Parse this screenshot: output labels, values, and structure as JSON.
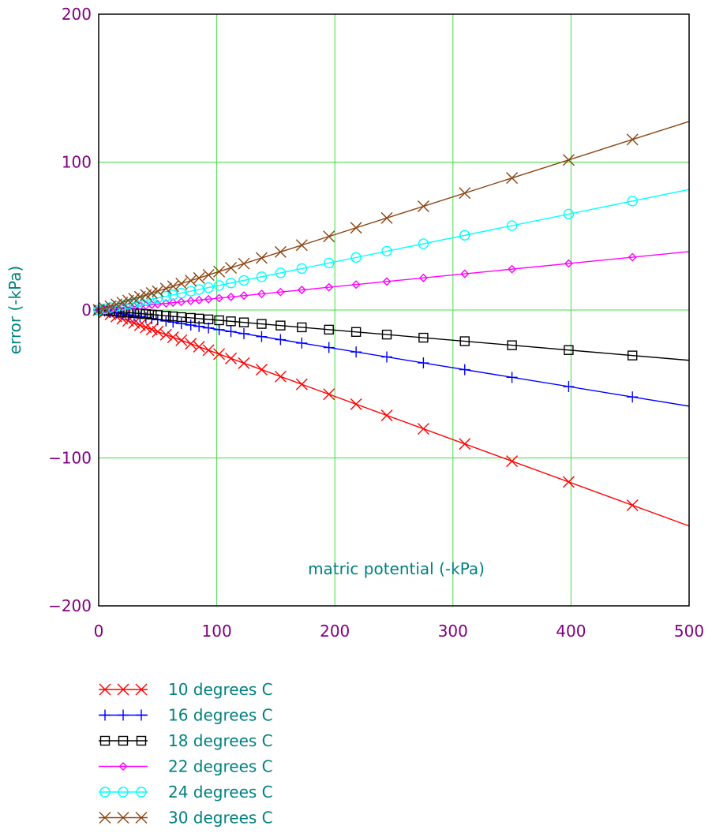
{
  "chart_data": {
    "type": "line",
    "title": "",
    "xlabel": "matric potential (-kPa)",
    "ylabel": "error (-kPa)",
    "xlim": [
      0,
      500
    ],
    "ylim": [
      -200,
      200
    ],
    "x_ticks": [
      "0",
      "100",
      "200",
      "300",
      "400",
      "500"
    ],
    "y_ticks": [
      "200",
      "100",
      "0",
      "−100",
      "−200"
    ],
    "grid": true,
    "grid_color": "#44dd44",
    "tick_label_color": "#800080",
    "axis_label_color": "#008080",
    "legend_placement": "bottom-left, below chart",
    "marker_x": [
      0,
      5,
      10,
      15,
      20,
      25,
      30,
      35,
      40,
      45,
      50,
      57,
      63,
      70,
      78,
      85,
      93,
      102,
      112,
      123,
      138,
      154,
      172,
      195,
      218,
      244,
      275,
      310,
      350,
      398,
      452
    ],
    "series": [
      {
        "name": "10 degrees C",
        "color": "#ff0000",
        "marker": "x",
        "slope": -0.292
      },
      {
        "name": "16 degrees C",
        "color": "#0000ff",
        "marker": "plus",
        "slope": -0.13
      },
      {
        "name": "18 degrees C",
        "color": "#000000",
        "marker": "square",
        "slope": -0.068
      },
      {
        "name": "22 degrees C",
        "color": "#ff00ff",
        "marker": "diamond",
        "slope": 0.079
      },
      {
        "name": "24 degrees C",
        "color": "#00ffff",
        "marker": "circle",
        "slope": 0.163
      },
      {
        "name": "30 degrees C",
        "color": "#8b4513",
        "marker": "x",
        "slope": 0.255
      }
    ]
  }
}
